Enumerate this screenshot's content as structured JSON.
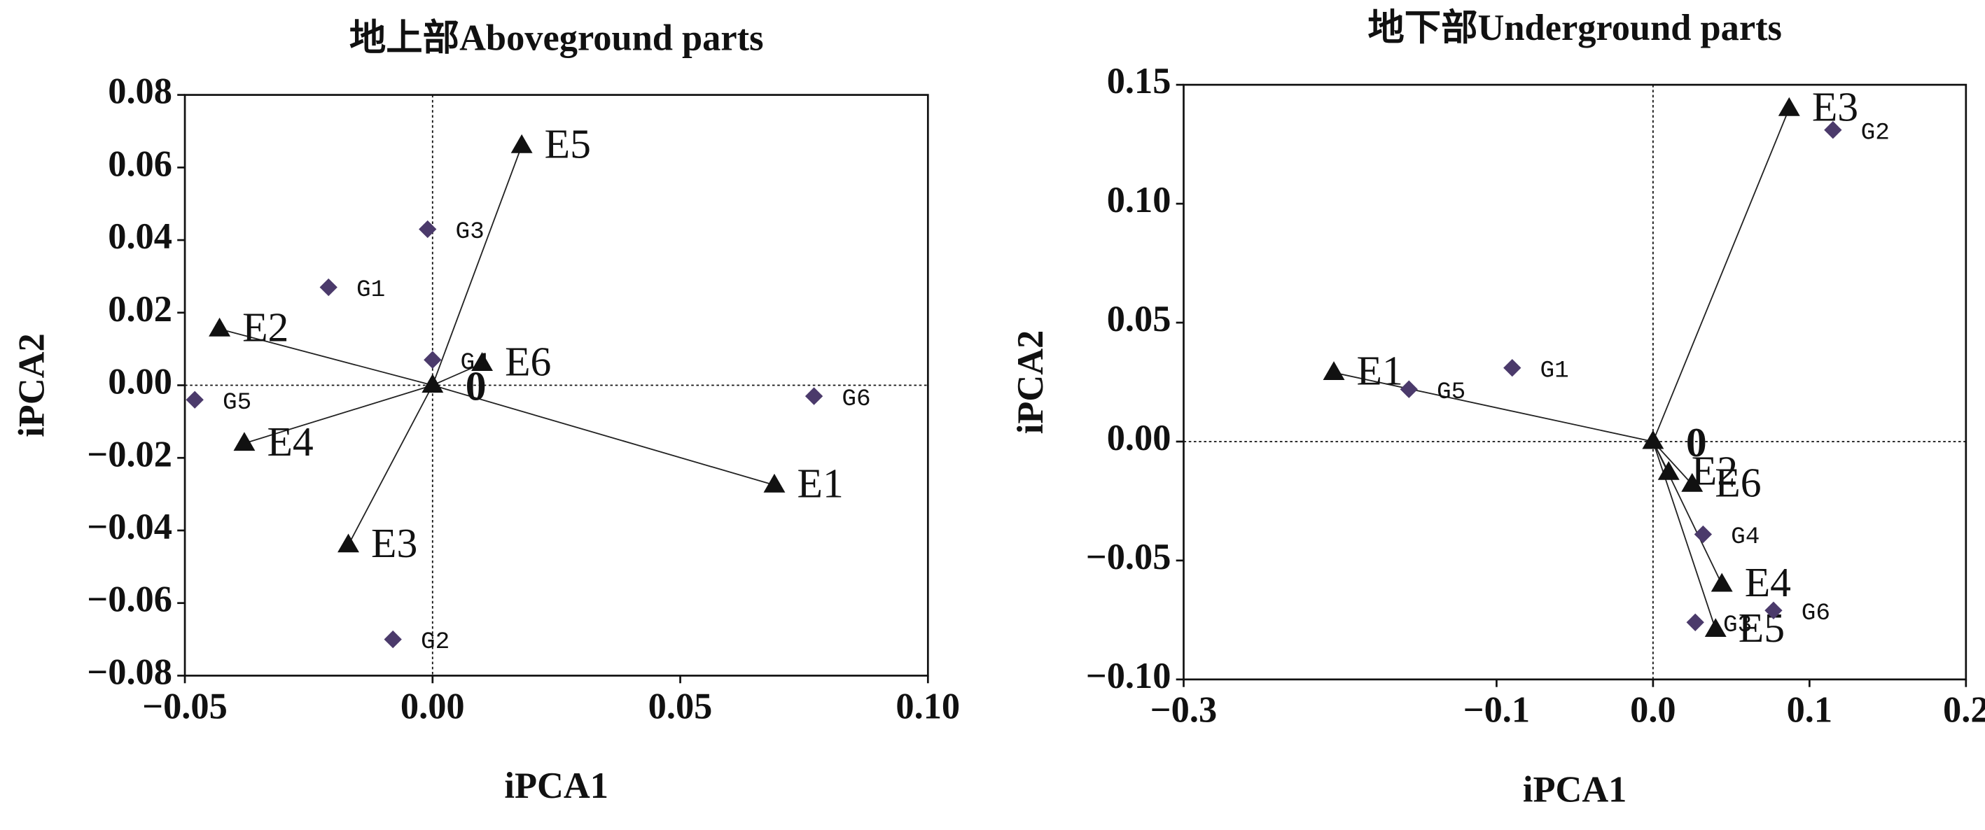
{
  "chart_data": [
    {
      "type": "biplot",
      "title": "地上部Aboveground parts",
      "xlabel": "iPCA1",
      "ylabel": "iPCA2",
      "xlim": [
        -0.05,
        0.1
      ],
      "ylim": [
        -0.08,
        0.08
      ],
      "xticks": [
        {
          "value": -0.05,
          "label": "−0.05"
        },
        {
          "value": 0,
          "label": "0.00"
        },
        0.05,
        {
          "value": 0.1,
          "label": "0.10"
        }
      ],
      "yticks": [
        {
          "value": -0.08,
          "label": "−0.08"
        },
        {
          "value": -0.06,
          "label": "−0.06"
        },
        {
          "value": -0.04,
          "label": "−0.04"
        },
        {
          "value": -0.02,
          "label": "−0.02"
        },
        {
          "value": 0,
          "label": "0.00"
        },
        0.02,
        0.04,
        0.06,
        0.08
      ],
      "origin_label": "0",
      "env_color": "#111111",
      "gen_color": "#4b3a6b",
      "environments": {
        "names": [
          "E1",
          "E2",
          "E3",
          "E4",
          "E5",
          "E6"
        ],
        "x": [
          0.069,
          -0.043,
          -0.017,
          -0.038,
          0.018,
          0.01
        ],
        "y": [
          -0.0275,
          0.0155,
          -0.044,
          -0.016,
          0.066,
          0.006
        ]
      },
      "genotypes": {
        "names": [
          "G1",
          "G2",
          "G3",
          "G4",
          "G5",
          "G6"
        ],
        "x": [
          -0.021,
          -0.008,
          -0.001,
          0.0,
          -0.048,
          0.077
        ],
        "y": [
          0.027,
          -0.07,
          0.043,
          0.007,
          -0.004,
          -0.003
        ]
      }
    },
    {
      "type": "biplot",
      "title": "地下部Underground parts",
      "xlabel": "iPCA1",
      "ylabel": "iPCA2",
      "xlim": [
        -0.3,
        0.2
      ],
      "ylim": [
        -0.1,
        0.15
      ],
      "xticks": [
        {
          "value": -0.3,
          "label": "−0.3"
        },
        {
          "value": -0.1,
          "label": "−0.1"
        },
        {
          "value": 0,
          "label": "0.0"
        },
        0.1,
        0.2
      ],
      "yticks": [
        {
          "value": -0.1,
          "label": "−0.10"
        },
        {
          "value": -0.05,
          "label": "−0.05"
        },
        {
          "value": 0,
          "label": "0.00"
        },
        0.05,
        {
          "value": 0.1,
          "label": "0.10"
        },
        0.15
      ],
      "origin_label": "0",
      "env_color": "#111111",
      "gen_color": "#4b3a6b",
      "environments": {
        "names": [
          "E1",
          "E2",
          "E3",
          "E4",
          "E5",
          "E6"
        ],
        "x": [
          -0.204,
          0.01,
          0.087,
          0.044,
          0.04,
          0.025
        ],
        "y": [
          0.029,
          -0.013,
          0.14,
          -0.06,
          -0.079,
          -0.018
        ]
      },
      "genotypes": {
        "names": [
          "G1",
          "G2",
          "G3",
          "G4",
          "G5",
          "G6"
        ],
        "x": [
          -0.09,
          0.115,
          0.027,
          0.032,
          -0.156,
          0.077
        ],
        "y": [
          0.031,
          0.131,
          -0.076,
          -0.039,
          0.022,
          -0.071
        ]
      }
    }
  ]
}
